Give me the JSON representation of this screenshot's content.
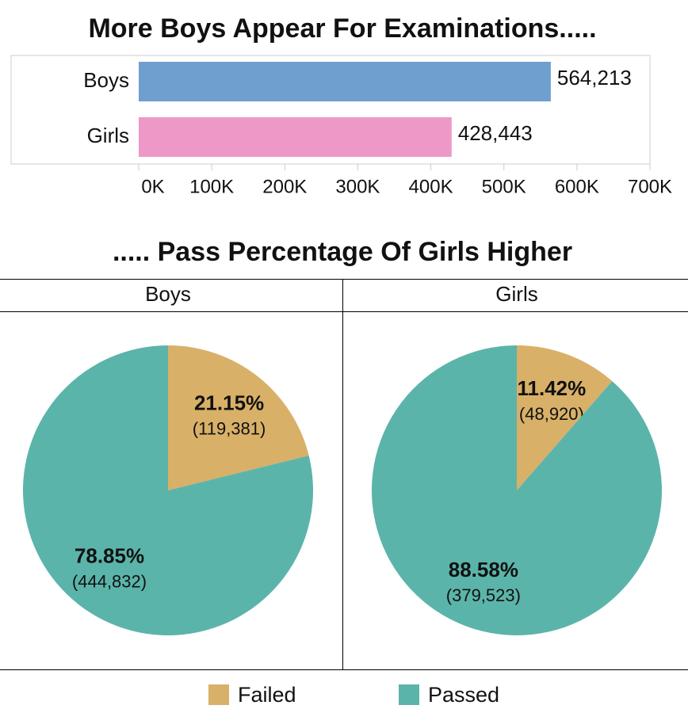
{
  "chart_data": [
    {
      "type": "bar",
      "orientation": "horizontal",
      "title": "More Boys Appear For Examinations.....",
      "categories": [
        "Boys",
        "Girls"
      ],
      "values": [
        564213,
        428443
      ],
      "value_labels": [
        "564,213",
        "428,443"
      ],
      "colors": [
        "#6f9fcf",
        "#ee98c8"
      ],
      "xlim": [
        0,
        700000
      ],
      "xticks": [
        {
          "value": 0,
          "label": "0K"
        },
        {
          "value": 100000,
          "label": "100K"
        },
        {
          "value": 200000,
          "label": "200K"
        },
        {
          "value": 300000,
          "label": "300K"
        },
        {
          "value": 400000,
          "label": "400K"
        },
        {
          "value": 500000,
          "label": "500K"
        },
        {
          "value": 600000,
          "label": "600K"
        },
        {
          "value": 700000,
          "label": "700K"
        }
      ]
    },
    {
      "type": "pie",
      "title": "..... Pass Percentage Of Girls Higher",
      "categories": [
        "Failed",
        "Passed"
      ],
      "colors": [
        "#d8b068",
        "#5bb4aa"
      ],
      "series": [
        {
          "name": "Boys",
          "values": [
            21.15,
            78.85
          ],
          "value_labels": [
            "21.15%",
            "78.85%"
          ],
          "counts": [
            119381,
            444832
          ],
          "count_labels": [
            "(119,381)",
            "(444,832)"
          ]
        },
        {
          "name": "Girls",
          "values": [
            11.42,
            88.58
          ],
          "value_labels": [
            "11.42%",
            "88.58%"
          ],
          "counts": [
            48920,
            379523
          ],
          "count_labels": [
            "(48,920)",
            "(379,523)"
          ]
        }
      ]
    }
  ]
}
